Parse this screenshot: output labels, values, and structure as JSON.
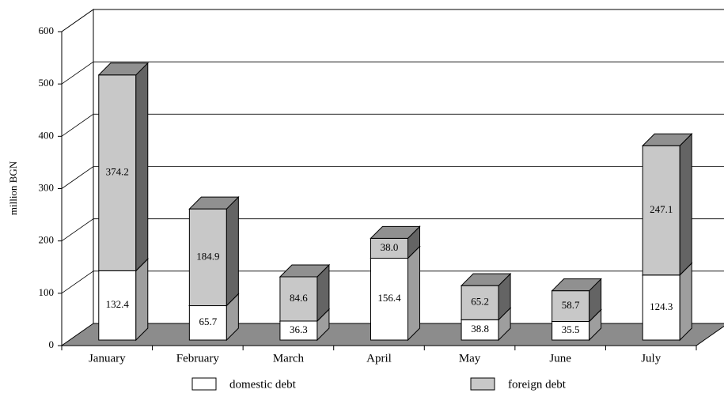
{
  "chart_data": {
    "type": "bar3d_stacked",
    "y_label": "million BGN",
    "categories": [
      "January",
      "February",
      "March",
      "April",
      "May",
      "June",
      "July"
    ],
    "series": [
      {
        "name": "domestic debt",
        "color": "#ffffff",
        "values": [
          132.4,
          65.7,
          36.3,
          156.4,
          38.8,
          35.5,
          124.3
        ]
      },
      {
        "name": "foreign debt",
        "color": "#c8c8c8",
        "values": [
          374.2,
          184.9,
          84.6,
          38.0,
          65.2,
          58.7,
          247.1
        ],
        "value_labels": [
          "374.2",
          "184.9",
          "84.6",
          "38.0",
          "65.2",
          "58.7",
          "247.1"
        ]
      }
    ],
    "ylim": [
      0,
      600
    ],
    "yticks": [
      0,
      100,
      200,
      300,
      400,
      500,
      600
    ],
    "grid": true,
    "legend": "bottom"
  }
}
